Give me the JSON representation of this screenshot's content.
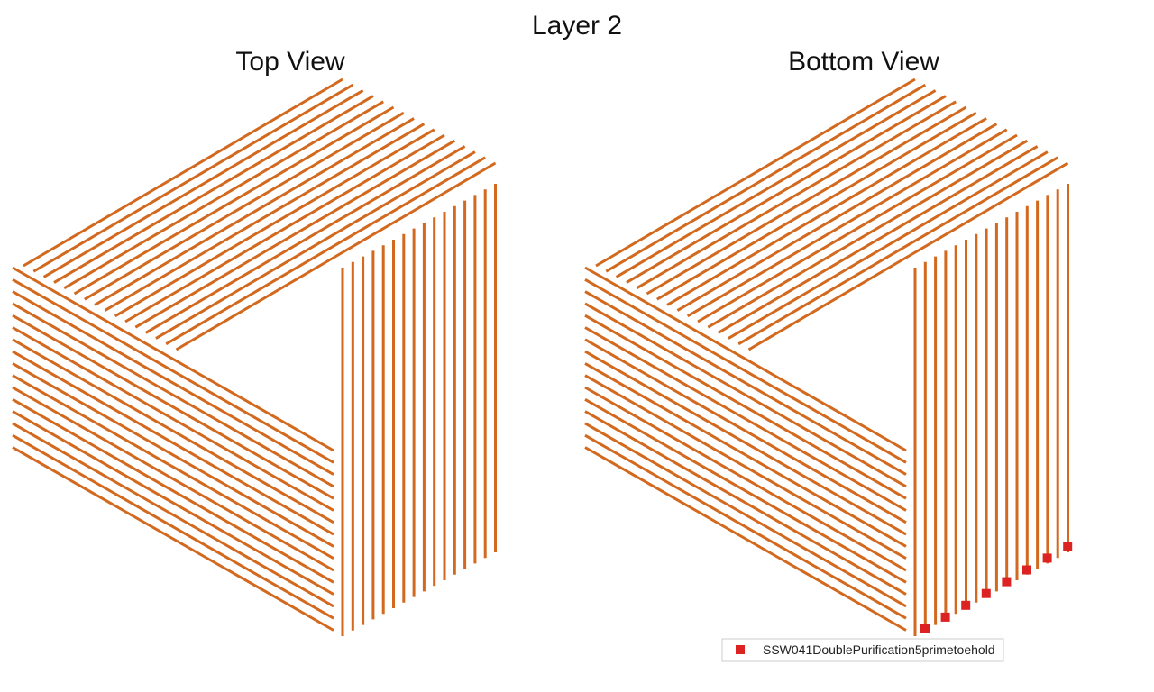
{
  "figure": {
    "title": "Layer 2",
    "panels": [
      {
        "title": "Top View"
      },
      {
        "title": "Bottom View"
      }
    ],
    "strand_count_per_side": 16,
    "strand_color": "#d2691e",
    "marker_color": "#dd2222",
    "marker_count": 8,
    "legend": {
      "label": "SSW041DoublePurification5primetoehold",
      "placement": "bottom-center of bottom view"
    }
  }
}
